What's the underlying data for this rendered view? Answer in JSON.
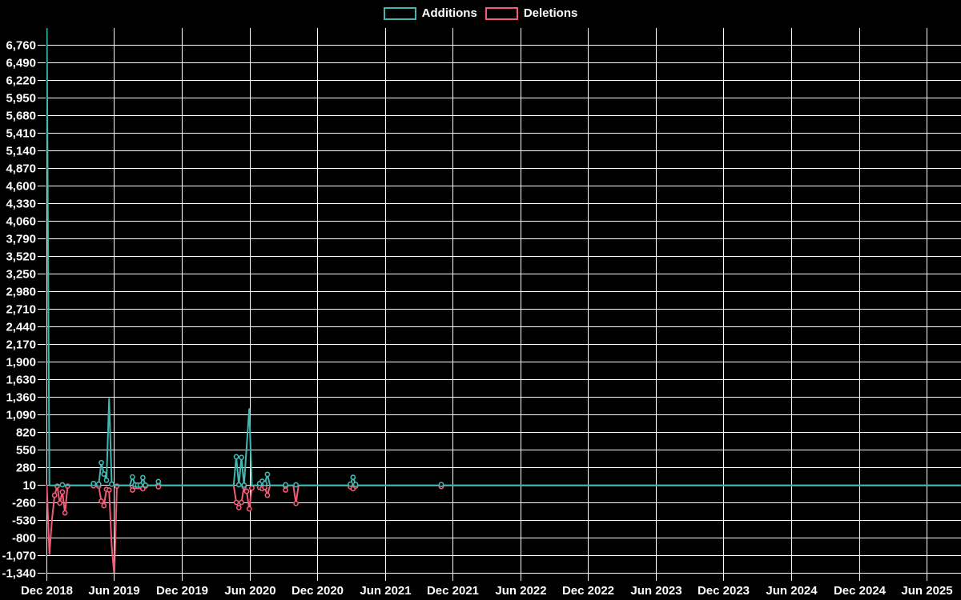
{
  "legend": {
    "items": [
      {
        "label": "Additions",
        "color": "#40b8b2"
      },
      {
        "label": "Deletions",
        "color": "#f25c78"
      }
    ]
  },
  "colors": {
    "background": "#000000",
    "grid": "#ffffff",
    "axis_text": "#ffffff",
    "additions": "#40b8b2",
    "deletions": "#f25c78"
  },
  "chart_data": {
    "type": "line",
    "title": "",
    "xlabel": "",
    "ylabel": "",
    "grid": true,
    "legend_position": "top-center",
    "y_axis": {
      "min_tick": -1340,
      "max_tick": 6760,
      "step": 270,
      "ticks": [
        {
          "v": 6760,
          "label": "6,760"
        },
        {
          "v": 6490,
          "label": "6,490"
        },
        {
          "v": 6220,
          "label": "6,220"
        },
        {
          "v": 5950,
          "label": "5,950"
        },
        {
          "v": 5680,
          "label": "5,680"
        },
        {
          "v": 5410,
          "label": "5,410"
        },
        {
          "v": 5140,
          "label": "5,140"
        },
        {
          "v": 4870,
          "label": "4,870"
        },
        {
          "v": 4600,
          "label": "4,600"
        },
        {
          "v": 4330,
          "label": "4,330"
        },
        {
          "v": 4060,
          "label": "4,060"
        },
        {
          "v": 3790,
          "label": "3,790"
        },
        {
          "v": 3520,
          "label": "3,520"
        },
        {
          "v": 3250,
          "label": "3,250"
        },
        {
          "v": 2980,
          "label": "2,980"
        },
        {
          "v": 2710,
          "label": "2,710"
        },
        {
          "v": 2440,
          "label": "2,440"
        },
        {
          "v": 2170,
          "label": "2,170"
        },
        {
          "v": 1900,
          "label": "1,900"
        },
        {
          "v": 1630,
          "label": "1,630"
        },
        {
          "v": 1360,
          "label": "1,360"
        },
        {
          "v": 1090,
          "label": "1,090"
        },
        {
          "v": 820,
          "label": "820"
        },
        {
          "v": 550,
          "label": "550"
        },
        {
          "v": 280,
          "label": "280"
        },
        {
          "v": 10,
          "label": "10"
        },
        {
          "v": -260,
          "label": "-260"
        },
        {
          "v": -530,
          "label": "-530"
        },
        {
          "v": -800,
          "label": "-800"
        },
        {
          "v": -1070,
          "label": "-1,070"
        },
        {
          "v": -1340,
          "label": "-1,340"
        }
      ]
    },
    "x_axis": {
      "ticks": [
        {
          "date": "2018-12-01",
          "label": "Dec 2018"
        },
        {
          "date": "2019-06-01",
          "label": "Jun 2019"
        },
        {
          "date": "2019-12-01",
          "label": "Dec 2019"
        },
        {
          "date": "2020-06-01",
          "label": "Jun 2020"
        },
        {
          "date": "2020-12-01",
          "label": "Dec 2020"
        },
        {
          "date": "2021-06-01",
          "label": "Jun 2021"
        },
        {
          "date": "2021-12-01",
          "label": "Dec 2021"
        },
        {
          "date": "2022-06-01",
          "label": "Jun 2022"
        },
        {
          "date": "2022-12-01",
          "label": "Dec 2022"
        },
        {
          "date": "2023-06-01",
          "label": "Jun 2023"
        },
        {
          "date": "2023-12-01",
          "label": "Dec 2023"
        },
        {
          "date": "2024-06-01",
          "label": "Jun 2024"
        },
        {
          "date": "2024-12-01",
          "label": "Dec 2024"
        },
        {
          "date": "2025-06-01",
          "label": "Jun 2025"
        }
      ]
    },
    "series_meta": [
      {
        "name": "Additions",
        "color": "#40b8b2"
      },
      {
        "name": "Deletions",
        "color": "#f25c78"
      }
    ],
    "weekly_range": {
      "start": "2018-12-02",
      "end": "2025-08-31"
    },
    "zero_fill_note": "weeks not listed below have additions 0 and deletions 0",
    "weeks": [
      {
        "date": "2018-12-02",
        "additions": 7020,
        "deletions": 0
      },
      {
        "date": "2018-12-09",
        "additions": 0,
        "deletions": -1055
      },
      {
        "date": "2018-12-16",
        "additions": 0,
        "deletions": -520
      },
      {
        "date": "2018-12-23",
        "additions": 0,
        "deletions": -150
      },
      {
        "date": "2018-12-30",
        "additions": 0,
        "deletions": -10
      },
      {
        "date": "2019-01-06",
        "additions": 0,
        "deletions": -270
      },
      {
        "date": "2019-01-13",
        "additions": 10,
        "deletions": -100
      },
      {
        "date": "2019-01-20",
        "additions": 0,
        "deletions": -420
      },
      {
        "date": "2019-01-27",
        "additions": 0,
        "deletions": -10
      },
      {
        "date": "2019-04-07",
        "additions": 30,
        "deletions": -5
      },
      {
        "date": "2019-04-21",
        "additions": 20,
        "deletions": -10
      },
      {
        "date": "2019-04-28",
        "additions": 350,
        "deletions": -240
      },
      {
        "date": "2019-05-05",
        "additions": 175,
        "deletions": -310
      },
      {
        "date": "2019-05-12",
        "additions": 80,
        "deletions": -60
      },
      {
        "date": "2019-05-19",
        "additions": 1330,
        "deletions": -70
      },
      {
        "date": "2019-05-26",
        "additions": 20,
        "deletions": -935
      },
      {
        "date": "2019-06-02",
        "additions": 0,
        "deletions": -1390
      },
      {
        "date": "2019-06-09",
        "additions": 0,
        "deletions": -10
      },
      {
        "date": "2019-07-21",
        "additions": 130,
        "deletions": -70
      },
      {
        "date": "2019-07-28",
        "additions": 10,
        "deletions": -15
      },
      {
        "date": "2019-08-04",
        "additions": 5,
        "deletions": -15
      },
      {
        "date": "2019-08-11",
        "additions": 5,
        "deletions": -15
      },
      {
        "date": "2019-08-18",
        "additions": 120,
        "deletions": -50
      },
      {
        "date": "2019-08-25",
        "additions": 5,
        "deletions": -10
      },
      {
        "date": "2019-09-29",
        "additions": 60,
        "deletions": -20
      },
      {
        "date": "2020-04-26",
        "additions": 440,
        "deletions": -260
      },
      {
        "date": "2020-05-03",
        "additions": 10,
        "deletions": -340
      },
      {
        "date": "2020-05-10",
        "additions": 430,
        "deletions": -260
      },
      {
        "date": "2020-05-17",
        "additions": 5,
        "deletions": -20
      },
      {
        "date": "2020-05-24",
        "additions": 600,
        "deletions": -90
      },
      {
        "date": "2020-05-31",
        "additions": 1175,
        "deletions": -360
      },
      {
        "date": "2020-06-07",
        "additions": 0,
        "deletions": -40
      },
      {
        "date": "2020-06-28",
        "additions": 30,
        "deletions": -30
      },
      {
        "date": "2020-07-05",
        "additions": 65,
        "deletions": -50
      },
      {
        "date": "2020-07-12",
        "additions": 30,
        "deletions": -30
      },
      {
        "date": "2020-07-19",
        "additions": 170,
        "deletions": -150
      },
      {
        "date": "2020-09-06",
        "additions": 10,
        "deletions": -70
      },
      {
        "date": "2020-10-04",
        "additions": 10,
        "deletions": -275
      },
      {
        "date": "2021-02-28",
        "additions": 20,
        "deletions": -20
      },
      {
        "date": "2021-03-07",
        "additions": 125,
        "deletions": -50
      },
      {
        "date": "2021-03-14",
        "additions": 15,
        "deletions": -10
      },
      {
        "date": "2021-10-31",
        "additions": 15,
        "deletions": -15
      }
    ]
  }
}
